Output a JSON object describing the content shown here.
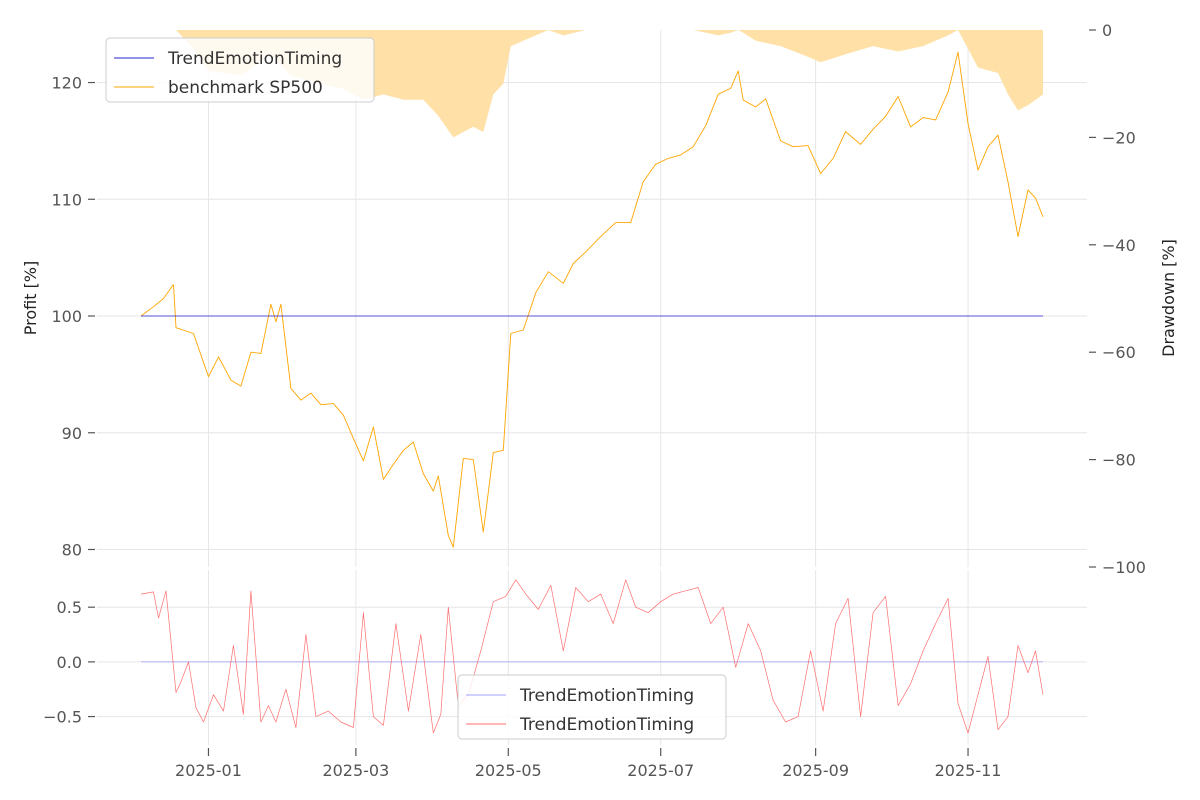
{
  "chart_data": [
    {
      "type": "line",
      "panel": "top",
      "ylabel": "Profit [%]",
      "y2label": "Drawdown [%]",
      "ylim": [
        78.5,
        124.5
      ],
      "y2lim": [
        -100,
        0
      ],
      "yticks": [
        "80",
        "90",
        "100",
        "110",
        "120"
      ],
      "y2ticks": [
        "0",
        "−20",
        "−40",
        "−60",
        "−80",
        "−100"
      ],
      "legend_position": "top-left",
      "grid": true,
      "colors": {
        "strategy": "#0000cc",
        "benchmark": "#ffa500",
        "drawdown_fill": "#ffe1a8"
      },
      "series": [
        {
          "name": "TrendEmotionTiming",
          "x": [
            "2024-12-05",
            "2025-12-01"
          ],
          "values": [
            100,
            100
          ]
        },
        {
          "name": "benchmark SP500",
          "x": [
            "2024-12-05",
            "2024-12-10",
            "2024-12-14",
            "2024-12-18",
            "2024-12-19",
            "2024-12-26",
            "2025-01-01",
            "2025-01-05",
            "2025-01-10",
            "2025-01-14",
            "2025-01-18",
            "2025-01-22",
            "2025-01-26",
            "2025-01-28",
            "2025-01-30",
            "2025-02-03",
            "2025-02-07",
            "2025-02-11",
            "2025-02-15",
            "2025-02-20",
            "2025-02-24",
            "2025-02-28",
            "2025-03-04",
            "2025-03-08",
            "2025-03-12",
            "2025-03-16",
            "2025-03-20",
            "2025-03-24",
            "2025-03-28",
            "2025-04-01",
            "2025-04-03",
            "2025-04-07",
            "2025-04-09",
            "2025-04-13",
            "2025-04-17",
            "2025-04-21",
            "2025-04-25",
            "2025-04-29",
            "2025-05-02",
            "2025-05-07",
            "2025-05-12",
            "2025-05-17",
            "2025-05-23",
            "2025-05-27",
            "2025-06-01",
            "2025-06-07",
            "2025-06-13",
            "2025-06-19",
            "2025-06-24",
            "2025-06-29",
            "2025-07-04",
            "2025-07-09",
            "2025-07-14",
            "2025-07-19",
            "2025-07-24",
            "2025-07-29",
            "2025-08-01",
            "2025-08-03",
            "2025-08-08",
            "2025-08-12",
            "2025-08-18",
            "2025-08-23",
            "2025-08-29",
            "2025-09-03",
            "2025-09-08",
            "2025-09-13",
            "2025-09-19",
            "2025-09-24",
            "2025-09-29",
            "2025-10-04",
            "2025-10-09",
            "2025-10-14",
            "2025-10-19",
            "2025-10-24",
            "2025-10-28",
            "2025-11-01",
            "2025-11-05",
            "2025-11-09",
            "2025-11-13",
            "2025-11-17",
            "2025-11-21",
            "2025-11-25",
            "2025-11-28",
            "2025-12-01"
          ],
          "values": [
            100,
            100.8,
            101.5,
            102.7,
            99,
            98.5,
            94.8,
            96.5,
            94.5,
            94,
            96.9,
            96.8,
            101,
            99.5,
            101,
            93.8,
            92.8,
            93.4,
            92.4,
            92.5,
            91.5,
            89.5,
            87.6,
            90.5,
            86,
            87.3,
            88.5,
            89.2,
            86.5,
            85,
            86.3,
            81.2,
            80.2,
            87.8,
            87.7,
            81.5,
            88.3,
            88.5,
            98.5,
            98.8,
            102,
            103.8,
            102.8,
            104.5,
            105.5,
            106.8,
            108,
            108,
            111.5,
            113,
            113.5,
            113.8,
            114.5,
            116.3,
            119,
            119.5,
            121,
            118.5,
            117.9,
            118.6,
            115,
            114.5,
            114.6,
            112.2,
            113.5,
            115.8,
            114.7,
            116,
            117.1,
            118.8,
            116.2,
            117,
            116.8,
            119.2,
            122.6,
            116.5,
            112.5,
            114.5,
            115.5,
            111.5,
            106.8,
            110.8,
            110.1,
            108.5
          ]
        }
      ],
      "drawdown": {
        "x": [
          "2024-12-05",
          "2024-12-19",
          "2024-12-26",
          "2025-01-01",
          "2025-01-14",
          "2025-01-26",
          "2025-02-03",
          "2025-02-15",
          "2025-02-24",
          "2025-03-04",
          "2025-03-12",
          "2025-03-20",
          "2025-03-28",
          "2025-04-03",
          "2025-04-09",
          "2025-04-17",
          "2025-04-21",
          "2025-04-25",
          "2025-04-29",
          "2025-05-02",
          "2025-05-07",
          "2025-05-12",
          "2025-05-17",
          "2025-05-23",
          "2025-06-01",
          "2025-06-13",
          "2025-06-24",
          "2025-07-04",
          "2025-07-14",
          "2025-07-24",
          "2025-07-29",
          "2025-08-01",
          "2025-08-03",
          "2025-08-08",
          "2025-08-18",
          "2025-08-29",
          "2025-09-03",
          "2025-09-13",
          "2025-09-24",
          "2025-10-04",
          "2025-10-14",
          "2025-10-24",
          "2025-10-28",
          "2025-11-01",
          "2025-11-05",
          "2025-11-13",
          "2025-11-17",
          "2025-11-21",
          "2025-11-25",
          "2025-12-01"
        ],
        "values": [
          0,
          0,
          -3.5,
          -7.6,
          -8.5,
          -4.5,
          -8.5,
          -10,
          -11,
          -13,
          -12,
          -13,
          -13,
          -16,
          -20,
          -18,
          -19,
          -12,
          -10,
          -3,
          -2,
          -1,
          0,
          -1,
          0,
          0,
          0,
          0,
          0,
          -1,
          -0.5,
          0,
          -0.5,
          -2,
          -3,
          -5,
          -6,
          -4.5,
          -3,
          -4,
          -3,
          -1,
          0,
          -3.5,
          -7,
          -8,
          -12,
          -15,
          -14,
          -12
        ]
      }
    },
    {
      "type": "line",
      "panel": "bottom",
      "ylim": [
        -0.76,
        0.84
      ],
      "yticks": [
        "0.5",
        "0.0",
        "−0.5"
      ],
      "xticks": [
        "2025-01",
        "2025-03",
        "2025-05",
        "2025-07",
        "2025-09",
        "2025-11"
      ],
      "legend_position": "bottom-center",
      "grid": true,
      "colors": {
        "flat": "#6666ff",
        "signal": "#ff5555"
      },
      "series": [
        {
          "name": "TrendEmotionTiming",
          "x": [
            "2024-12-05",
            "2025-12-01"
          ],
          "values": [
            0,
            0
          ]
        },
        {
          "name": "TrendEmotionTiming",
          "x": [
            "2024-12-05",
            "2024-12-10",
            "2024-12-12",
            "2024-12-15",
            "2024-12-19",
            "2024-12-21",
            "2024-12-24",
            "2024-12-27",
            "2024-12-30",
            "2025-01-03",
            "2025-01-07",
            "2025-01-11",
            "2025-01-15",
            "2025-01-18",
            "2025-01-22",
            "2025-01-25",
            "2025-01-28",
            "2025-02-01",
            "2025-02-05",
            "2025-02-09",
            "2025-02-13",
            "2025-02-18",
            "2025-02-23",
            "2025-02-28",
            "2025-03-04",
            "2025-03-08",
            "2025-03-12",
            "2025-03-17",
            "2025-03-22",
            "2025-03-27",
            "2025-04-01",
            "2025-04-04",
            "2025-04-07",
            "2025-04-11",
            "2025-04-15",
            "2025-04-20",
            "2025-04-25",
            "2025-04-30",
            "2025-05-04",
            "2025-05-08",
            "2025-05-13",
            "2025-05-18",
            "2025-05-23",
            "2025-05-28",
            "2025-06-02",
            "2025-06-07",
            "2025-06-12",
            "2025-06-17",
            "2025-06-21",
            "2025-06-26",
            "2025-07-01",
            "2025-07-06",
            "2025-07-11",
            "2025-07-16",
            "2025-07-21",
            "2025-07-26",
            "2025-07-31",
            "2025-08-05",
            "2025-08-10",
            "2025-08-15",
            "2025-08-20",
            "2025-08-25",
            "2025-08-30",
            "2025-09-04",
            "2025-09-09",
            "2025-09-14",
            "2025-09-19",
            "2025-09-24",
            "2025-09-29",
            "2025-10-04",
            "2025-10-09",
            "2025-10-14",
            "2025-10-19",
            "2025-10-24",
            "2025-10-28",
            "2025-11-01",
            "2025-11-05",
            "2025-11-09",
            "2025-11-13",
            "2025-11-17",
            "2025-11-21",
            "2025-11-25",
            "2025-11-28",
            "2025-12-01"
          ],
          "values": [
            0.62,
            0.64,
            0.4,
            0.65,
            -0.28,
            -0.18,
            0,
            -0.42,
            -0.55,
            -0.3,
            -0.45,
            0.15,
            -0.48,
            0.65,
            -0.55,
            -0.4,
            -0.55,
            -0.25,
            -0.6,
            0.25,
            -0.5,
            -0.45,
            -0.55,
            -0.6,
            0.45,
            -0.5,
            -0.58,
            0.35,
            -0.45,
            0.25,
            -0.65,
            -0.48,
            0.5,
            -0.4,
            -0.3,
            0.1,
            0.55,
            0.6,
            0.75,
            0.62,
            0.48,
            0.7,
            0.1,
            0.68,
            0.55,
            0.62,
            0.35,
            0.75,
            0.5,
            0.45,
            0.55,
            0.62,
            0.65,
            0.68,
            0.35,
            0.5,
            -0.05,
            0.35,
            0.1,
            -0.35,
            -0.55,
            -0.5,
            0.1,
            -0.45,
            0.35,
            0.58,
            -0.5,
            0.45,
            0.6,
            -0.4,
            -0.2,
            0.1,
            0.35,
            0.58,
            -0.38,
            -0.65,
            -0.3,
            0.05,
            -0.62,
            -0.5,
            0.15,
            -0.1,
            0.1,
            -0.3
          ]
        }
      ]
    }
  ]
}
